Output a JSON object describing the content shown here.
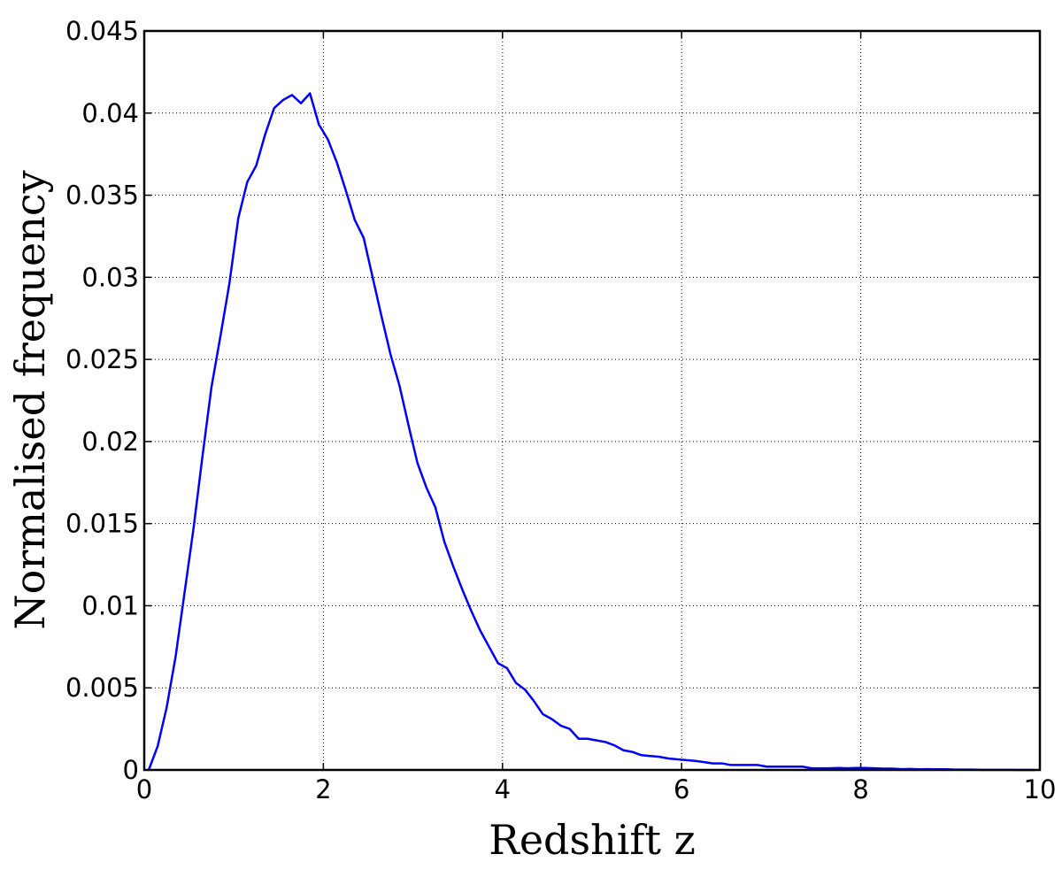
{
  "chart_data": {
    "type": "line",
    "xlabel": "Redshift z",
    "ylabel": "Normalised frequency",
    "x": [
      0.05,
      0.15,
      0.25,
      0.35,
      0.45,
      0.55,
      0.65,
      0.75,
      0.85,
      0.95,
      1.05,
      1.15,
      1.25,
      1.35,
      1.45,
      1.55,
      1.65,
      1.75,
      1.85,
      1.95,
      2.05,
      2.15,
      2.25,
      2.35,
      2.45,
      2.55,
      2.65,
      2.75,
      2.85,
      2.95,
      3.05,
      3.15,
      3.25,
      3.35,
      3.45,
      3.55,
      3.65,
      3.75,
      3.85,
      3.95,
      4.05,
      4.15,
      4.25,
      4.35,
      4.45,
      4.55,
      4.65,
      4.75,
      4.85,
      4.95,
      5.05,
      5.15,
      5.25,
      5.35,
      5.45,
      5.55,
      5.65,
      5.75,
      5.85,
      5.95,
      6.05,
      6.15,
      6.25,
      6.35,
      6.45,
      6.55,
      6.65,
      6.75,
      6.85,
      6.95,
      7.05,
      7.15,
      7.25,
      7.35,
      7.45,
      7.55,
      7.65,
      7.75,
      7.85,
      7.95,
      8.05,
      8.15,
      8.25,
      8.35,
      8.45,
      8.55,
      8.65,
      8.75,
      8.85,
      8.95,
      9.05,
      9.15,
      9.25,
      9.35,
      9.45,
      9.55,
      9.65,
      9.75,
      9.85,
      9.95
    ],
    "series": [
      {
        "color": "#0000ff",
        "values": [
          0,
          0.00145,
          0.0038,
          0.0069,
          0.0108,
          0.0147,
          0.0191,
          0.0233,
          0.0264,
          0.0296,
          0.0336,
          0.0358,
          0.0368,
          0.0387,
          0.0403,
          0.0408,
          0.0411,
          0.0406,
          0.0412,
          0.0393,
          0.0384,
          0.037,
          0.0353,
          0.0335,
          0.0324,
          0.03,
          0.0276,
          0.0253,
          0.0234,
          0.021,
          0.0187,
          0.0172,
          0.016,
          0.0139,
          0.0124,
          0.011,
          0.0097,
          0.0085,
          0.0075,
          0.0065,
          0.0062,
          0.0053,
          0.0049,
          0.0042,
          0.0034,
          0.0031,
          0.0027,
          0.0025,
          0.0019,
          0.0019,
          0.0018,
          0.0017,
          0.0015,
          0.0012,
          0.0011,
          0.0009,
          0.00085,
          0.0008,
          0.0007,
          0.00065,
          0.0006,
          0.00055,
          0.00048,
          0.0004,
          0.0004,
          0.0003,
          0.0003,
          0.0003,
          0.0003,
          0.0002,
          0.0002,
          0.0002,
          0.0002,
          0.0002,
          0.0001,
          0.0001,
          0.0001,
          0.00012,
          0.0001,
          0.00012,
          0.00012,
          0.0001,
          8e-05,
          8e-05,
          5e-05,
          6e-05,
          4e-05,
          5e-05,
          4e-05,
          4e-05,
          2e-05,
          2e-05,
          2e-05,
          1e-05,
          1e-05,
          1e-05,
          1e-05,
          0,
          0,
          0
        ]
      }
    ],
    "xlim": [
      0,
      10
    ],
    "xticks": [
      0,
      2,
      4,
      6,
      8,
      10
    ],
    "ylim": [
      0,
      0.045
    ],
    "yticks": [
      0,
      0.005,
      0.01,
      0.015,
      0.02,
      0.025,
      0.03,
      0.035,
      0.04,
      0.045
    ],
    "grid": true
  }
}
